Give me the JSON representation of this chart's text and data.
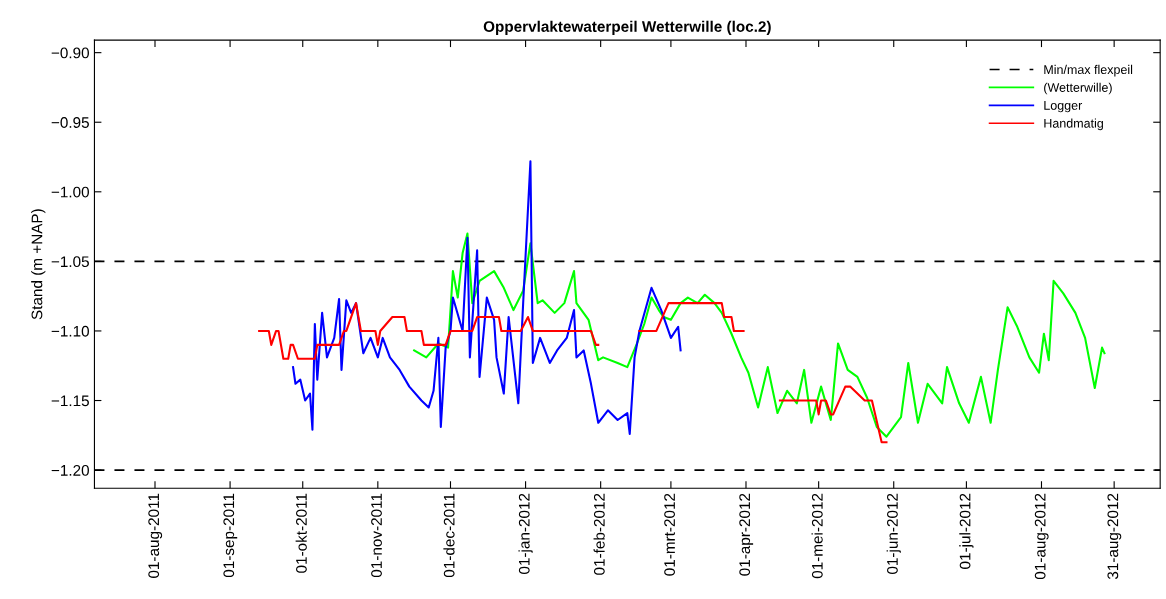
{
  "chart_data": {
    "type": "line",
    "title": "Oppervlaktewaterpeil Wetterwille (loc.2)",
    "ylabel": "Stand (m +NAP)",
    "xlim": [
      "2011-07-07",
      "2012-09-19"
    ],
    "ylim": [
      -1.213,
      -0.891
    ],
    "xticks": [
      {
        "value": "2011-08-01",
        "label": "01-aug-2011"
      },
      {
        "value": "2011-09-01",
        "label": "01-sep-2011"
      },
      {
        "value": "2011-10-01",
        "label": "01-okt-2011"
      },
      {
        "value": "2011-11-01",
        "label": "01-nov-2011"
      },
      {
        "value": "2011-12-01",
        "label": "01-dec-2011"
      },
      {
        "value": "2012-01-01",
        "label": "01-jan-2012"
      },
      {
        "value": "2012-02-01",
        "label": "01-feb-2012"
      },
      {
        "value": "2012-03-01",
        "label": "01-mrt-2012"
      },
      {
        "value": "2012-04-01",
        "label": "01-apr-2012"
      },
      {
        "value": "2012-05-01",
        "label": "01-mei-2012"
      },
      {
        "value": "2012-06-01",
        "label": "01-jun-2012"
      },
      {
        "value": "2012-07-01",
        "label": "01-jul-2012"
      },
      {
        "value": "2012-08-01",
        "label": "01-aug-2012"
      },
      {
        "value": "2012-08-31",
        "label": "31-aug-2012"
      }
    ],
    "yticks": [
      {
        "value": -0.9,
        "label": "−0.90"
      },
      {
        "value": -0.95,
        "label": "−0.95"
      },
      {
        "value": -1.0,
        "label": "−1.00"
      },
      {
        "value": -1.05,
        "label": "−1.05"
      },
      {
        "value": -1.1,
        "label": "−1.10"
      },
      {
        "value": -1.15,
        "label": "−1.15"
      },
      {
        "value": -1.2,
        "label": "−1.20"
      }
    ],
    "grid": false,
    "legend": "top right",
    "marker": "none",
    "line_style": "solid",
    "ref_lines": [
      {
        "axis": "y",
        "value": -1.05,
        "label": "Min/max flexpeil",
        "color": "#000000",
        "line_style": "dashed"
      },
      {
        "axis": "y",
        "value": -1.2,
        "color": "#000000",
        "line_style": "dashed"
      }
    ],
    "series": [
      {
        "name": "(Wetterwille)",
        "color": "#00ff00",
        "x": [
          "2011-11-16",
          "2011-11-21",
          "2011-11-26",
          "2011-11-30",
          "2011-12-01",
          "2011-12-02",
          "2011-12-04",
          "2011-12-06",
          "2011-12-08",
          "2011-12-10",
          "2011-12-13",
          "2011-12-19",
          "2011-12-23",
          "2011-12-27",
          "2011-12-31",
          "2012-01-03",
          "2012-01-06",
          "2012-01-08",
          "2012-01-13",
          "2012-01-17",
          "2012-01-21",
          "2012-01-22",
          "2012-01-27",
          "2012-01-31",
          "2012-02-02",
          "2012-02-08",
          "2012-02-12",
          "2012-02-16",
          "2012-02-19",
          "2012-02-22",
          "2012-02-25",
          "2012-02-27",
          "2012-03-01",
          "2012-03-05",
          "2012-03-08",
          "2012-03-12",
          "2012-03-15",
          "2012-03-19",
          "2012-03-22",
          "2012-03-26",
          "2012-03-30",
          "2012-04-02",
          "2012-04-06",
          "2012-04-10",
          "2012-04-14",
          "2012-04-18",
          "2012-04-22",
          "2012-04-25",
          "2012-04-28",
          "2012-05-02",
          "2012-05-06",
          "2012-05-09",
          "2012-05-13",
          "2012-05-17",
          "2012-05-21",
          "2012-05-25",
          "2012-05-29",
          "2012-06-04",
          "2012-06-07",
          "2012-06-11",
          "2012-06-15",
          "2012-06-21",
          "2012-06-23",
          "2012-06-28",
          "2012-07-02",
          "2012-07-07",
          "2012-07-11",
          "2012-07-14",
          "2012-07-18",
          "2012-07-22",
          "2012-07-27",
          "2012-07-31",
          "2012-08-02",
          "2012-08-04",
          "2012-08-06",
          "2012-08-10",
          "2012-08-15",
          "2012-08-19",
          "2012-08-23",
          "2012-08-26",
          "2012-08-27"
        ],
        "values": [
          -1.114,
          -1.119,
          -1.109,
          -1.112,
          -1.085,
          -1.057,
          -1.076,
          -1.044,
          -1.03,
          -1.08,
          -1.064,
          -1.057,
          -1.069,
          -1.085,
          -1.071,
          -1.037,
          -1.08,
          -1.078,
          -1.087,
          -1.08,
          -1.057,
          -1.08,
          -1.092,
          -1.121,
          -1.119,
          -1.123,
          -1.126,
          -1.109,
          -1.095,
          -1.076,
          -1.085,
          -1.09,
          -1.092,
          -1.08,
          -1.076,
          -1.08,
          -1.074,
          -1.08,
          -1.087,
          -1.102,
          -1.119,
          -1.13,
          -1.155,
          -1.126,
          -1.159,
          -1.143,
          -1.152,
          -1.128,
          -1.166,
          -1.14,
          -1.164,
          -1.109,
          -1.128,
          -1.133,
          -1.148,
          -1.169,
          -1.176,
          -1.162,
          -1.123,
          -1.166,
          -1.138,
          -1.152,
          -1.126,
          -1.152,
          -1.166,
          -1.133,
          -1.166,
          -1.128,
          -1.083,
          -1.097,
          -1.119,
          -1.13,
          -1.102,
          -1.121,
          -1.064,
          -1.073,
          -1.087,
          -1.105,
          -1.141,
          -1.112,
          -1.116
        ]
      },
      {
        "name": "Logger",
        "color": "#0000ff",
        "x": [
          "2011-09-27",
          "2011-09-28",
          "2011-09-30",
          "2011-10-02",
          "2011-10-04",
          "2011-10-05",
          "2011-10-06",
          "2011-10-07",
          "2011-10-09",
          "2011-10-11",
          "2011-10-14",
          "2011-10-16",
          "2011-10-17",
          "2011-10-19",
          "2011-10-21",
          "2011-10-23",
          "2011-10-26",
          "2011-10-29",
          "2011-11-01",
          "2011-11-03",
          "2011-11-06",
          "2011-11-10",
          "2011-11-14",
          "2011-11-19",
          "2011-11-22",
          "2011-11-24",
          "2011-11-26",
          "2011-11-27",
          "2011-11-29",
          "2011-12-01",
          "2011-12-02",
          "2011-12-06",
          "2011-12-08",
          "2011-12-09",
          "2011-12-12",
          "2011-12-13",
          "2011-12-16",
          "2011-12-19",
          "2011-12-20",
          "2011-12-23",
          "2011-12-25",
          "2011-12-29",
          "2011-12-31",
          "2012-01-03",
          "2012-01-04",
          "2012-01-07",
          "2012-01-11",
          "2012-01-14",
          "2012-01-18",
          "2012-01-21",
          "2012-01-22",
          "2012-01-25",
          "2012-01-28",
          "2012-01-31",
          "2012-02-04",
          "2012-02-08",
          "2012-02-12",
          "2012-02-13",
          "2012-02-15",
          "2012-02-17",
          "2012-02-22",
          "2012-02-26",
          "2012-03-01",
          "2012-03-04",
          "2012-03-05"
        ],
        "values": [
          -1.126,
          -1.138,
          -1.135,
          -1.15,
          -1.145,
          -1.171,
          -1.095,
          -1.135,
          -1.087,
          -1.119,
          -1.105,
          -1.077,
          -1.128,
          -1.078,
          -1.087,
          -1.08,
          -1.116,
          -1.105,
          -1.119,
          -1.105,
          -1.119,
          -1.128,
          -1.14,
          -1.15,
          -1.155,
          -1.143,
          -1.105,
          -1.169,
          -1.112,
          -1.1,
          -1.076,
          -1.1,
          -1.033,
          -1.119,
          -1.042,
          -1.133,
          -1.076,
          -1.092,
          -1.119,
          -1.145,
          -1.09,
          -1.152,
          -1.08,
          -0.978,
          -1.123,
          -1.105,
          -1.123,
          -1.114,
          -1.105,
          -1.085,
          -1.119,
          -1.114,
          -1.138,
          -1.166,
          -1.157,
          -1.164,
          -1.159,
          -1.174,
          -1.119,
          -1.1,
          -1.069,
          -1.085,
          -1.105,
          -1.097,
          -1.114
        ]
      },
      {
        "name": "Handmatig",
        "color": "#ff0000",
        "x": [
          "2011-09-13",
          "2011-09-17",
          "2011-09-18",
          "2011-09-20",
          "2011-09-21",
          "2011-09-23",
          "2011-09-25",
          "2011-09-26",
          "2011-09-27",
          "2011-09-29",
          "2011-10-06",
          "2011-10-07",
          "2011-10-16",
          "2011-10-18",
          "2011-10-19",
          "2011-10-23",
          "2011-10-25",
          "2011-10-31",
          "2011-11-01",
          "2011-11-02",
          "2011-11-07",
          "2011-11-12",
          "2011-11-13",
          "2011-11-19",
          "2011-11-20",
          "2011-11-29",
          "2011-12-01",
          "2011-12-10",
          "2011-12-12",
          "2011-12-21",
          "2011-12-22",
          "2011-12-30",
          "2012-01-02",
          "2012-01-04",
          "2012-01-28",
          "2012-01-30",
          "2012-01-31",
          "2012-02-08",
          "2012-02-17",
          "2012-02-24",
          "2012-02-29",
          "2012-03-22",
          "2012-03-23",
          "2012-03-26",
          "2012-03-27",
          "2012-03-31",
          "2012-04-08",
          "2012-04-15",
          "2012-04-30",
          "2012-05-01",
          "2012-05-02",
          "2012-05-04",
          "2012-05-06",
          "2012-05-07",
          "2012-05-12",
          "2012-05-14",
          "2012-05-20",
          "2012-05-23",
          "2012-05-27",
          "2012-05-29"
        ],
        "values": [
          -1.1,
          -1.1,
          -1.11,
          -1.1,
          -1.1,
          -1.12,
          -1.12,
          -1.11,
          -1.11,
          -1.12,
          -1.12,
          -1.11,
          -1.11,
          -1.1,
          -1.1,
          -1.08,
          -1.1,
          -1.1,
          -1.11,
          -1.1,
          -1.09,
          -1.09,
          -1.1,
          -1.1,
          -1.11,
          -1.11,
          -1.1,
          -1.1,
          -1.09,
          -1.09,
          -1.1,
          -1.1,
          -1.09,
          -1.1,
          -1.1,
          -1.11,
          -1.11,
          null,
          -1.1,
          -1.1,
          -1.08,
          -1.08,
          -1.09,
          -1.09,
          -1.1,
          -1.1,
          null,
          -1.15,
          -1.15,
          -1.16,
          -1.15,
          -1.15,
          -1.16,
          -1.16,
          -1.14,
          -1.14,
          -1.15,
          -1.15,
          -1.18,
          -1.18
        ]
      }
    ]
  }
}
